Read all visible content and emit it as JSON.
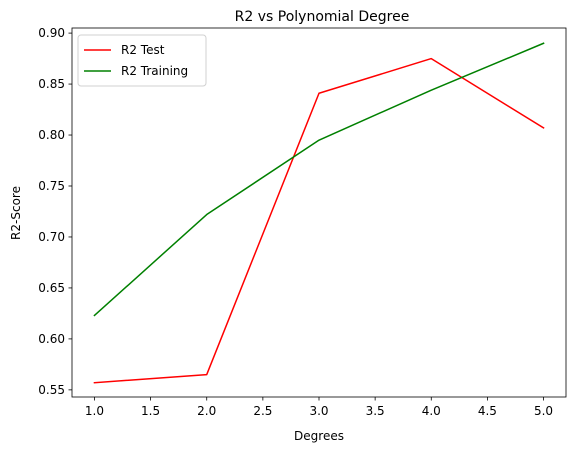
{
  "chart_data": {
    "type": "line",
    "title": "R2 vs Polynomial Degree",
    "xlabel": "Degrees",
    "ylabel": "R2-Score",
    "x": [
      1,
      2,
      3,
      4,
      5
    ],
    "xlim": [
      0.8,
      5.2
    ],
    "ylim": [
      0.543,
      0.905
    ],
    "xticks": [
      1.0,
      1.5,
      2.0,
      2.5,
      3.0,
      3.5,
      4.0,
      4.5,
      5.0
    ],
    "xtick_labels": [
      "1.0",
      "1.5",
      "2.0",
      "2.5",
      "3.0",
      "3.5",
      "4.0",
      "4.5",
      "5.0"
    ],
    "yticks": [
      0.55,
      0.6,
      0.65,
      0.7,
      0.75,
      0.8,
      0.85,
      0.9
    ],
    "ytick_labels": [
      "0.55",
      "0.60",
      "0.65",
      "0.70",
      "0.75",
      "0.80",
      "0.85",
      "0.90"
    ],
    "grid": false,
    "legend_position": "upper-left",
    "series": [
      {
        "name": "R2 Test",
        "color": "#ff0000",
        "values": [
          0.557,
          0.565,
          0.841,
          0.875,
          0.807
        ]
      },
      {
        "name": "R2 Training",
        "color": "#008000",
        "values": [
          0.623,
          0.722,
          0.795,
          0.844,
          0.89
        ]
      }
    ]
  }
}
